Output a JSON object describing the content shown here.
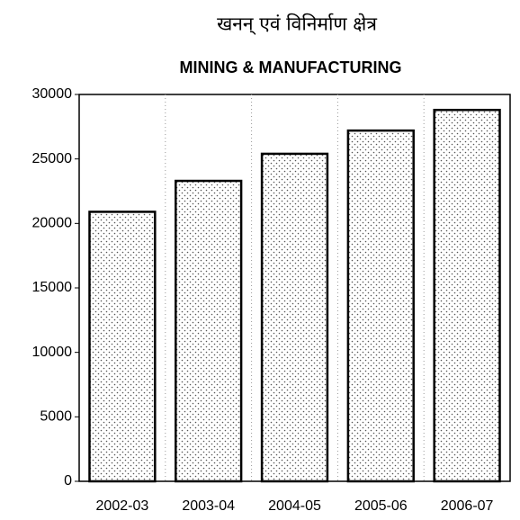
{
  "chart_data": {
    "type": "bar",
    "hindi_title": "खनन् एवं विनिर्माण क्षेत्र",
    "title": "MINING & MANUFACTURING",
    "categories": [
      "2002-03",
      "2003-04",
      "2004-05",
      "2005-06",
      "2006-07"
    ],
    "values": [
      20900,
      23300,
      25400,
      27200,
      28800
    ],
    "color": "#ffffff",
    "ylim": [
      0,
      30000
    ],
    "yticks": [
      0,
      5000,
      10000,
      15000,
      20000,
      25000,
      30000
    ],
    "grid": false
  }
}
